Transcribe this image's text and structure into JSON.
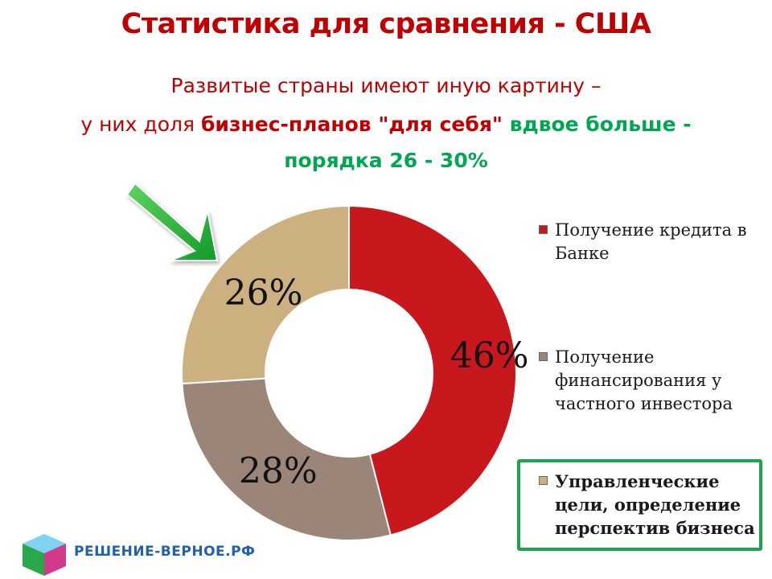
{
  "title": "Статистика для сравнения - США",
  "subtitle": {
    "line1": "Развитые страны имеют иную картину –",
    "line2_prefix": "у них доля ",
    "line2_bold": "бизнес-планов \"для себя\"",
    "line2_green": " вдвое больше -",
    "line3_green": "порядка 26 - 30%"
  },
  "chart_data": {
    "type": "pie",
    "variant": "donut",
    "categories": [
      "Получение кредита в Банке",
      "Получение финансирования у частного инвестора",
      "Управленческие цели, определение перспектив бизнеса"
    ],
    "values": [
      46,
      28,
      26
    ],
    "data_labels": [
      "46%",
      "28%",
      "26%"
    ],
    "colors": [
      "#c8181e",
      "#9b8478",
      "#cdb080"
    ],
    "legend_position": "right"
  },
  "legend": {
    "items": [
      {
        "label": "Получение кредита в Банке",
        "color": "#c8181e"
      },
      {
        "label": "Получение финансирования у частного инвестора",
        "color": "#9b8478"
      },
      {
        "label": "Управленческие цели, определение перспектив бизнеса",
        "color": "#cdb080"
      }
    ]
  },
  "branding": {
    "site": "РЕШЕНИЕ-ВЕРНОЕ.РФ"
  },
  "icons": {
    "pointer": "green-arrow-icon",
    "logo": "cube-logo-icon"
  }
}
